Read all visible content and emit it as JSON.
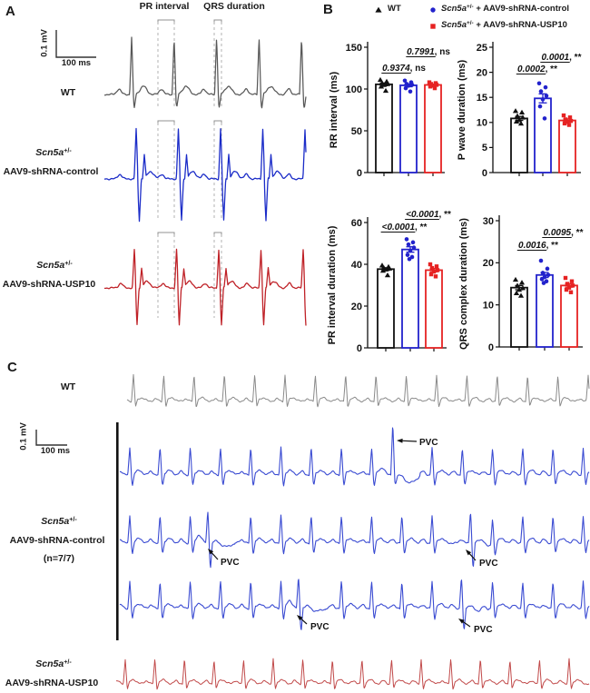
{
  "panel_a": {
    "label": "A",
    "annotations": {
      "pr": "PR interval",
      "qrs": "QRS duration"
    },
    "scale_bar": {
      "vertical": "0.1 mV",
      "horizontal": "100 ms"
    },
    "traces": [
      {
        "id": "wt",
        "color": "#585858",
        "label_lines": [
          [
            {
              "t": "WT"
            }
          ]
        ]
      },
      {
        "id": "aav9-shrna-control",
        "color": "#1b2cc8",
        "label_lines": [
          [
            {
              "t": "Scn5a",
              "i": true
            },
            {
              "t": "+/-",
              "sup": true
            }
          ],
          [
            {
              "t": "AAV9-shRNA-control"
            }
          ]
        ]
      },
      {
        "id": "aav9-shrna-usp10",
        "color": "#bf2127",
        "label_lines": [
          [
            {
              "t": "Scn5a",
              "i": true
            },
            {
              "t": "+/-",
              "sup": true
            }
          ],
          [
            {
              "t": "AAV9-shRNA-USP10"
            }
          ]
        ]
      }
    ]
  },
  "panel_b": {
    "label": "B",
    "legend": [
      {
        "marker": "triangle",
        "color": "#111111",
        "parts": [
          {
            "t": "WT"
          }
        ]
      },
      {
        "marker": "circle",
        "color": "#2222cc",
        "parts": [
          {
            "t": "Scn5a",
            "i": true
          },
          {
            "t": "+/-",
            "sup": true
          },
          {
            "t": " + AAV9-shRNA-control"
          }
        ]
      },
      {
        "marker": "square",
        "color": "#e62222",
        "parts": [
          {
            "t": "Scn5a",
            "i": true
          },
          {
            "t": "+/-",
            "sup": true
          },
          {
            "t": " + AAV9-shRNA-USP10"
          }
        ]
      }
    ]
  },
  "panel_c": {
    "label": "C",
    "scale_bar": {
      "vertical": "0.1 mV",
      "horizontal": "100 ms"
    },
    "pvc_label": "PVC",
    "traces": [
      {
        "id": "wt",
        "color": "#8a8a8a",
        "label_lines": [
          [
            {
              "t": "WT"
            }
          ]
        ]
      },
      {
        "id": "aav9-shrna-control",
        "color": "#3a4bd2",
        "label_lines": [
          [
            {
              "t": "Scn5a",
              "i": true
            },
            {
              "t": "+/-",
              "sup": true
            }
          ],
          [
            {
              "t": "AAV9-shRNA-control"
            }
          ],
          [
            {
              "t": "(n=7/7)"
            }
          ]
        ]
      },
      {
        "id": "aav9-shrna-usp10",
        "color": "#c14a4a",
        "label_lines": [
          [
            {
              "t": "Scn5a",
              "i": true
            },
            {
              "t": "+/-",
              "sup": true
            }
          ],
          [
            {
              "t": "AAV9-shRNA-USP10"
            }
          ]
        ]
      }
    ]
  },
  "chart_data": [
    {
      "id": "rr-interval",
      "type": "bar",
      "ylabel": "RR interval (ms)",
      "ylim": [
        0,
        150
      ],
      "yticks": [
        0,
        50,
        100,
        150
      ],
      "grid": false,
      "categories": [
        "WT",
        "Scn5a+/- + AAV9-shRNA-control",
        "Scn5a+/- + AAV9-shRNA-USP10"
      ],
      "means": [
        105.6,
        104.4,
        104.9
      ],
      "sem": [
        1.6,
        1.7,
        0.9
      ],
      "points": [
        [
          111,
          109,
          107,
          106,
          105,
          103,
          98
        ],
        [
          110,
          108,
          106,
          105,
          104,
          101,
          97
        ],
        [
          108,
          107,
          106,
          105,
          104,
          103,
          101
        ]
      ],
      "colors": [
        "#111111",
        "#2222cc",
        "#e62222"
      ],
      "markers": [
        "triangle",
        "circle",
        "square"
      ],
      "comparisons": [
        {
          "p": "0.9374",
          "sig": "ns",
          "bars": [
            0,
            1
          ]
        },
        {
          "p": "0.7991",
          "sig": "ns",
          "bars": [
            1,
            2
          ]
        }
      ]
    },
    {
      "id": "p-wave-duration",
      "type": "bar",
      "ylabel": "P wave duration (ms)",
      "ylim": [
        0,
        25
      ],
      "yticks": [
        0,
        5,
        10,
        15,
        20,
        25
      ],
      "grid": false,
      "categories": [
        "WT",
        "Scn5a+/- + AAV9-shRNA-control",
        "Scn5a+/- + AAV9-shRNA-USP10"
      ],
      "means": [
        10.8,
        14.8,
        10.4
      ],
      "sem": [
        0.4,
        0.9,
        0.3
      ],
      "points": [
        [
          12.3,
          12,
          11.3,
          11,
          10.5,
          10.2,
          9.8
        ],
        [
          17.8,
          17,
          16.2,
          15.3,
          14.6,
          13.2,
          10.8
        ],
        [
          11.4,
          11,
          10.6,
          10.3,
          10.1,
          9.8,
          9.5
        ]
      ],
      "colors": [
        "#111111",
        "#2222cc",
        "#e62222"
      ],
      "markers": [
        "triangle",
        "circle",
        "square"
      ],
      "comparisons": [
        {
          "p": "0.0002",
          "sig": "**",
          "bars": [
            0,
            1
          ]
        },
        {
          "p": "0.0001",
          "sig": "**",
          "bars": [
            1,
            2
          ]
        }
      ]
    },
    {
      "id": "pr-interval-duration",
      "type": "bar",
      "ylabel": "PR interval duration (ms)",
      "ylim": [
        0,
        60
      ],
      "yticks": [
        0,
        20,
        40,
        60
      ],
      "grid": false,
      "categories": [
        "WT",
        "Scn5a+/- + AAV9-shRNA-control",
        "Scn5a+/- + AAV9-shRNA-USP10"
      ],
      "means": [
        37.7,
        47.1,
        37.2
      ],
      "sem": [
        0.6,
        1.3,
        0.8
      ],
      "points": [
        [
          39.5,
          38.8,
          38.2,
          38,
          37.6,
          37,
          34.8
        ],
        [
          52,
          50.5,
          49.5,
          48,
          46.5,
          44.5,
          43.5,
          42.5
        ],
        [
          40,
          39,
          38.2,
          37.2,
          36.5,
          35.2,
          34.2
        ]
      ],
      "colors": [
        "#111111",
        "#2222cc",
        "#e62222"
      ],
      "markers": [
        "triangle",
        "circle",
        "square"
      ],
      "comparisons": [
        {
          "p": "<0.0001",
          "sig": "**",
          "bars": [
            0,
            1
          ]
        },
        {
          "p": "<0.0001",
          "sig": "**",
          "bars": [
            1,
            2
          ]
        }
      ]
    },
    {
      "id": "qrs-complex-duration",
      "type": "bar",
      "ylabel": "QRS complex duration (ms)",
      "ylim": [
        0,
        30
      ],
      "yticks": [
        0,
        10,
        20,
        30
      ],
      "grid": false,
      "categories": [
        "WT",
        "Scn5a+/- + AAV9-shRNA-control",
        "Scn5a+/- + AAV9-shRNA-USP10"
      ],
      "means": [
        14.1,
        17.1,
        14.6
      ],
      "sem": [
        0.5,
        0.6,
        0.4
      ],
      "points": [
        [
          16,
          15.3,
          14.6,
          14,
          13.6,
          12.8,
          12.2
        ],
        [
          20.5,
          18.6,
          17.6,
          17.1,
          16.6,
          16.1,
          15.6,
          15.2
        ],
        [
          16.4,
          15.6,
          15,
          14.6,
          14.1,
          13.6,
          13
        ]
      ],
      "colors": [
        "#111111",
        "#2222cc",
        "#e62222"
      ],
      "markers": [
        "triangle",
        "circle",
        "square"
      ],
      "comparisons": [
        {
          "p": "0.0016",
          "sig": "**",
          "bars": [
            0,
            1
          ]
        },
        {
          "p": "0.0095",
          "sig": "**",
          "bars": [
            1,
            2
          ]
        }
      ]
    }
  ]
}
